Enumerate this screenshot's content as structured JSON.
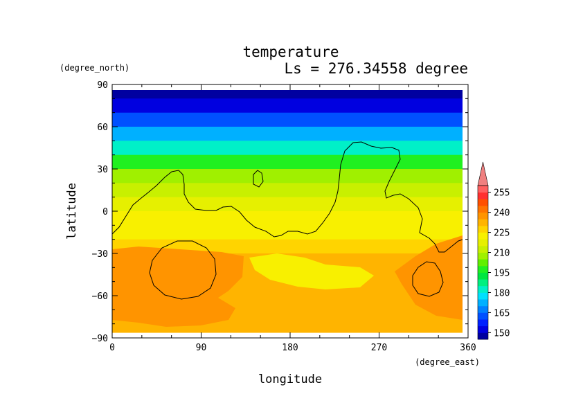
{
  "chart_data": {
    "type": "heatmap",
    "title": "temperature",
    "subtitle": "Ls = 276.34558 degree",
    "xlabel": "longitude",
    "ylabel": "latitude",
    "xunit": "(degree_east)",
    "yunit": "(degree_north)",
    "xlim": [
      0,
      360
    ],
    "ylim": [
      -90,
      90
    ],
    "xticks": [
      0,
      90,
      180,
      270,
      360
    ],
    "yticks": [
      -90,
      -60,
      -30,
      0,
      30,
      60,
      90
    ],
    "colorbar": {
      "levels": [
        145,
        150,
        155,
        160,
        165,
        170,
        175,
        180,
        185,
        190,
        195,
        200,
        205,
        210,
        215,
        220,
        225,
        230,
        235,
        240,
        245,
        250,
        255,
        260
      ],
      "labels": [
        150,
        165,
        180,
        195,
        210,
        225,
        240,
        255
      ],
      "colors": [
        "#0000a0",
        "#0000e0",
        "#0020ff",
        "#0050ff",
        "#0080ff",
        "#00b0ff",
        "#00e0ff",
        "#00f0c8",
        "#00f080",
        "#00e640",
        "#20f020",
        "#60f000",
        "#a0f000",
        "#c8f000",
        "#e6f000",
        "#f8f000",
        "#ffd400",
        "#ffb400",
        "#ff9400",
        "#ff7400",
        "#ff5000",
        "#ff3030",
        "#ff6060"
      ],
      "extend_max_color": "#f08080"
    },
    "latitudes": [
      85,
      75,
      65,
      55,
      45,
      35,
      25,
      15,
      5,
      -5,
      -15,
      -25,
      -35,
      -45,
      -55,
      -65,
      -75,
      -85
    ],
    "zonal_mean_temperature": [
      148,
      151,
      160,
      172,
      183,
      195,
      205,
      213,
      217,
      221,
      224,
      227,
      231,
      233,
      233,
      232,
      233,
      233
    ]
  }
}
